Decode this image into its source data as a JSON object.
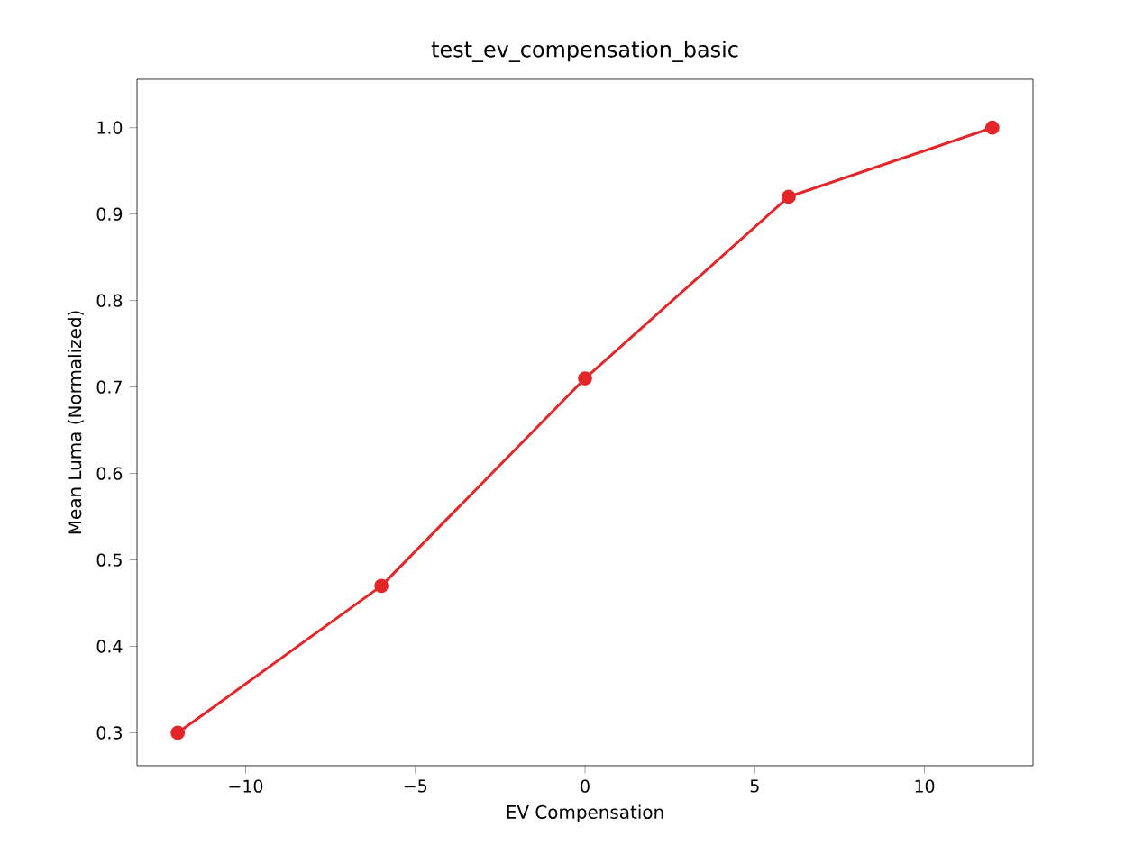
{
  "chart_data": {
    "type": "line",
    "title": "test_ev_compensation_basic",
    "xlabel": "EV Compensation",
    "ylabel": "Mean Luma (Normalized)",
    "x": [
      -12,
      -6,
      0,
      6,
      12
    ],
    "series": [
      {
        "color": "#e3262a",
        "values": [
          0.3,
          0.47,
          0.71,
          0.92,
          1.0
        ]
      }
    ],
    "xlim": [
      -13.2,
      13.2
    ],
    "ylim": [
      0.262,
      1.056
    ],
    "xticks": [
      {
        "value": -10,
        "label": "−10"
      },
      {
        "value": -5,
        "label": "−5"
      },
      0,
      5,
      10
    ],
    "yticks": [
      {
        "value": 0.3,
        "label": "0.3"
      },
      {
        "value": 0.4,
        "label": "0.4"
      },
      {
        "value": 0.5,
        "label": "0.5"
      },
      {
        "value": 0.6,
        "label": "0.6"
      },
      {
        "value": 0.7,
        "label": "0.7"
      },
      {
        "value": 0.8,
        "label": "0.8"
      },
      {
        "value": 0.9,
        "label": "0.9"
      },
      {
        "value": 1.0,
        "label": "1.0"
      }
    ],
    "marker": "circle",
    "line_style": "solid"
  }
}
